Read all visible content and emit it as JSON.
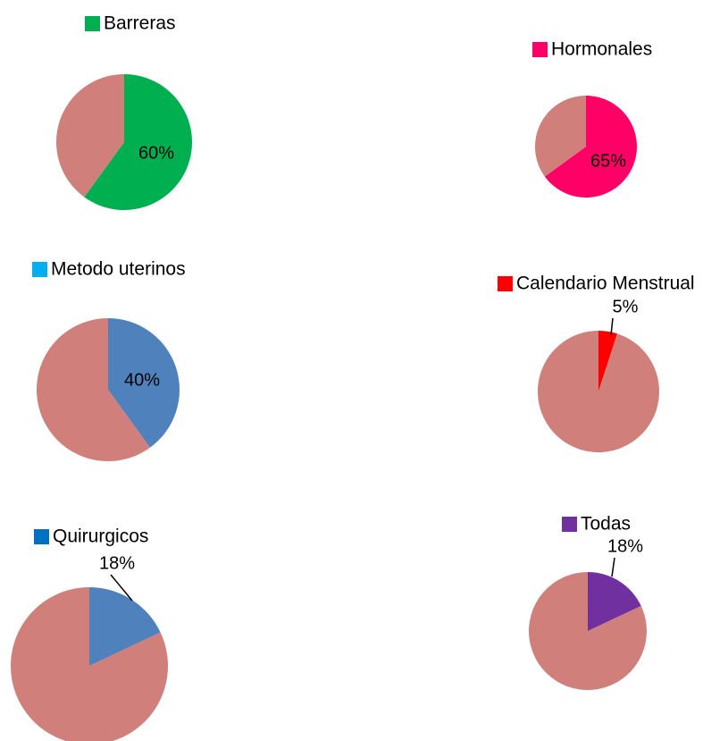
{
  "chart_data": [
    {
      "type": "pie",
      "categories": [
        "Barreras",
        null
      ],
      "values": [
        60,
        40
      ],
      "value_labels": [
        "60%",
        null
      ],
      "colors": [
        "#00b050",
        "#d07f7b"
      ]
    },
    {
      "type": "pie",
      "categories": [
        "Hormonales",
        null
      ],
      "values": [
        65,
        35
      ],
      "value_labels": [
        "65%",
        null
      ],
      "colors": [
        "#ff0066",
        "#d07f7b"
      ]
    },
    {
      "type": "pie",
      "categories": [
        "Metodo uterinos",
        null
      ],
      "values": [
        40,
        60
      ],
      "value_labels": [
        "40%",
        null
      ],
      "colors": [
        "#4f81bd",
        "#d07f7b"
      ],
      "legend_color": "#00b0f0"
    },
    {
      "type": "pie",
      "categories": [
        "Calendario Menstrual",
        null
      ],
      "values": [
        5,
        95
      ],
      "value_labels": [
        "5%",
        null
      ],
      "colors": [
        "#ff0000",
        "#d07f7b"
      ]
    },
    {
      "type": "pie",
      "categories": [
        "Quirurgicos",
        null
      ],
      "values": [
        18,
        82
      ],
      "value_labels": [
        "18%",
        null
      ],
      "colors": [
        "#4f81bd",
        "#d07f7b"
      ],
      "legend_color": "#0070c0"
    },
    {
      "type": "pie",
      "categories": [
        "Todas",
        null
      ],
      "values": [
        18,
        82
      ],
      "value_labels": [
        "18%",
        null
      ],
      "colors": [
        "#7030a0",
        "#d07f7b"
      ]
    }
  ]
}
